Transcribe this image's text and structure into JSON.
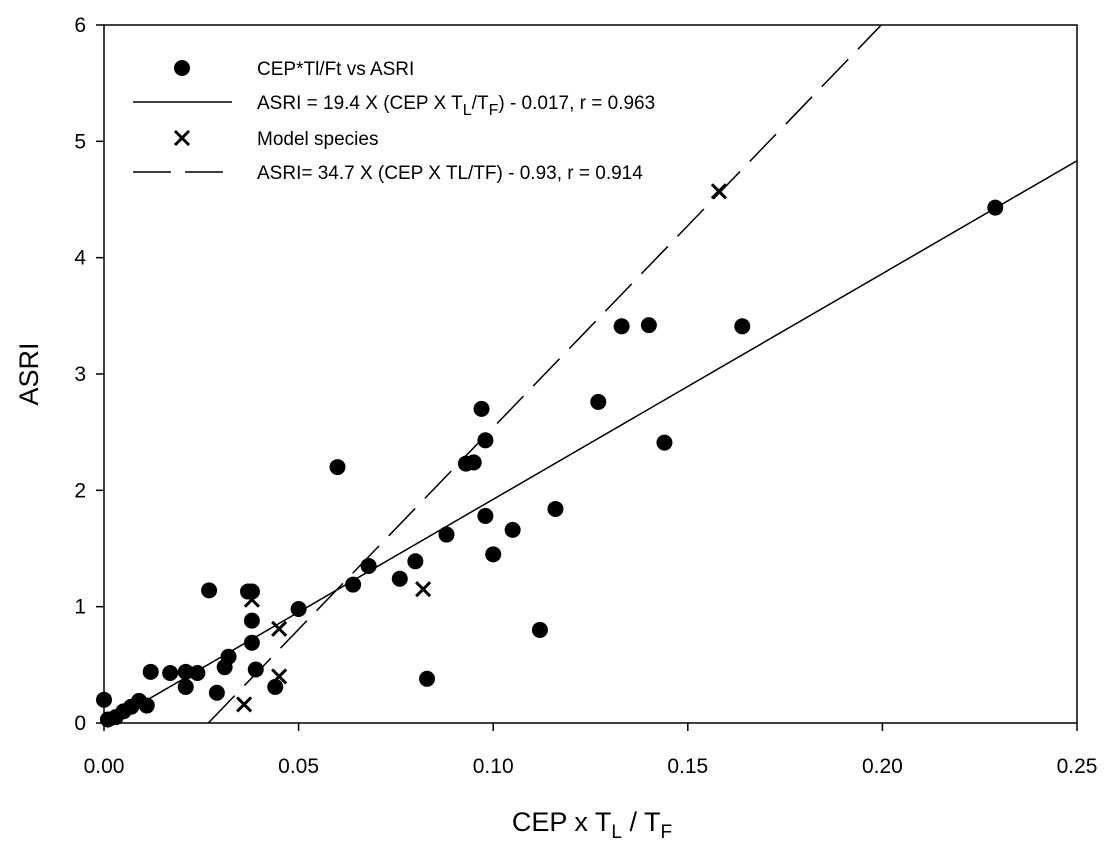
{
  "chart_data": {
    "type": "scatter",
    "xlabel": {
      "base": "CEP x T",
      "sub1": "L",
      "mid": " / T",
      "sub2": "F"
    },
    "ylabel": "ASRI",
    "xlim": [
      0,
      0.25
    ],
    "ylim": [
      0,
      6
    ],
    "x_ticks": [
      "0.00",
      "0.05",
      "0.10",
      "0.15",
      "0.20",
      "0.25"
    ],
    "y_ticks": [
      "0",
      "1",
      "2",
      "3",
      "4",
      "5",
      "6"
    ],
    "grid": false,
    "legend_position": "top-left",
    "legend": [
      {
        "type": "marker-dot",
        "text": "CEP*Tl/Ft vs ASRI"
      },
      {
        "type": "line-solid",
        "pre": "ASRI = 19.4 X (CEP X T",
        "sub1": "L",
        "mid": "/T",
        "sub2": "F",
        "post": ") - 0.017, r = 0.963"
      },
      {
        "type": "marker-x",
        "text": "Model species"
      },
      {
        "type": "line-dashed",
        "text": "ASRI= 34.7 X (CEP X TL/TF) - 0.93, r = 0.914"
      }
    ],
    "series": [
      {
        "name": "CEP*Tl/Ft vs ASRI",
        "marker": "dot",
        "points": [
          [
            0.0,
            0.2
          ],
          [
            0.001,
            0.03
          ],
          [
            0.003,
            0.05
          ],
          [
            0.005,
            0.1
          ],
          [
            0.007,
            0.14
          ],
          [
            0.009,
            0.19
          ],
          [
            0.011,
            0.15
          ],
          [
            0.012,
            0.44
          ],
          [
            0.017,
            0.43
          ],
          [
            0.021,
            0.44
          ],
          [
            0.021,
            0.31
          ],
          [
            0.024,
            0.43
          ],
          [
            0.027,
            1.14
          ],
          [
            0.029,
            0.26
          ],
          [
            0.031,
            0.48
          ],
          [
            0.032,
            0.57
          ],
          [
            0.037,
            1.13
          ],
          [
            0.038,
            1.13
          ],
          [
            0.038,
            0.88
          ],
          [
            0.038,
            0.69
          ],
          [
            0.039,
            0.46
          ],
          [
            0.044,
            0.31
          ],
          [
            0.05,
            0.98
          ],
          [
            0.06,
            2.2
          ],
          [
            0.064,
            1.19
          ],
          [
            0.068,
            1.35
          ],
          [
            0.076,
            1.24
          ],
          [
            0.08,
            1.39
          ],
          [
            0.083,
            0.38
          ],
          [
            0.088,
            1.62
          ],
          [
            0.093,
            2.23
          ],
          [
            0.095,
            2.24
          ],
          [
            0.097,
            2.7
          ],
          [
            0.098,
            1.78
          ],
          [
            0.098,
            2.43
          ],
          [
            0.1,
            1.45
          ],
          [
            0.105,
            1.66
          ],
          [
            0.112,
            0.8
          ],
          [
            0.116,
            1.84
          ],
          [
            0.127,
            2.76
          ],
          [
            0.133,
            3.41
          ],
          [
            0.14,
            3.42
          ],
          [
            0.144,
            2.41
          ],
          [
            0.164,
            3.41
          ],
          [
            0.229,
            4.43
          ]
        ]
      },
      {
        "name": "Model species",
        "marker": "x",
        "points": [
          [
            0.036,
            0.16
          ],
          [
            0.038,
            1.06
          ],
          [
            0.045,
            0.81
          ],
          [
            0.045,
            0.4
          ],
          [
            0.082,
            1.15
          ],
          [
            0.158,
            4.57
          ]
        ]
      }
    ],
    "fit_lines": [
      {
        "style": "solid",
        "slope": 19.4,
        "intercept": -0.017
      },
      {
        "style": "dashed",
        "slope": 34.7,
        "intercept": -0.93
      }
    ]
  }
}
